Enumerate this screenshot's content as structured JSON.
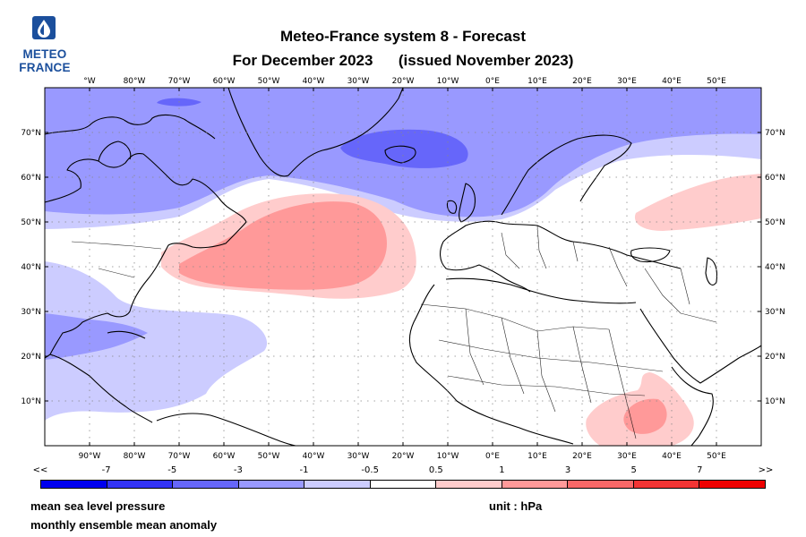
{
  "logo": {
    "line1": "METEO",
    "line2": "FRANCE",
    "icon": "meteo-france-drop-logo"
  },
  "title": {
    "line1": "Meteo-France system 8  -  Forecast",
    "line2_a": "For December 2023",
    "line2_b": "(issued November 2023)"
  },
  "map": {
    "projection": "equirectangular",
    "lon_range": [
      -100,
      60
    ],
    "lat_range": [
      0,
      80
    ],
    "top_lon_labels": [
      "°W",
      "80°W",
      "70°W",
      "60°W",
      "50°W",
      "40°W",
      "30°W",
      "20°W",
      "10°W",
      "0°E",
      "10°E",
      "20°E",
      "30°E",
      "40°E",
      "50°E"
    ],
    "bottom_lon_labels": [
      "90°W",
      "80°W",
      "70°W",
      "60°W",
      "50°W",
      "40°W",
      "30°W",
      "20°W",
      "10°W",
      "0°E",
      "10°E",
      "20°E",
      "30°E",
      "40°E",
      "50°E"
    ],
    "lat_labels": [
      "10°N",
      "20°N",
      "30°N",
      "40°N",
      "50°N",
      "60°N",
      "70°N"
    ],
    "gridlines": "dotted",
    "land_fill": "#ffffff",
    "coast_color": "#000000"
  },
  "colorbar": {
    "labels": [
      "<<",
      "-7",
      "-5",
      "-3",
      "-1",
      "-0.5",
      "0.5",
      "1",
      "3",
      "5",
      "7",
      ">>"
    ],
    "colors": [
      "#0000ee",
      "#3333f5",
      "#6666fa",
      "#9999ff",
      "#ccccff",
      "#ffffff",
      "#ffcccc",
      "#ff9999",
      "#f86868",
      "#f23434",
      "#ee0000"
    ]
  },
  "footer": {
    "variable": "mean sea level pressure",
    "description": "monthly ensemble mean anomaly",
    "unit": "unit : hPa"
  }
}
